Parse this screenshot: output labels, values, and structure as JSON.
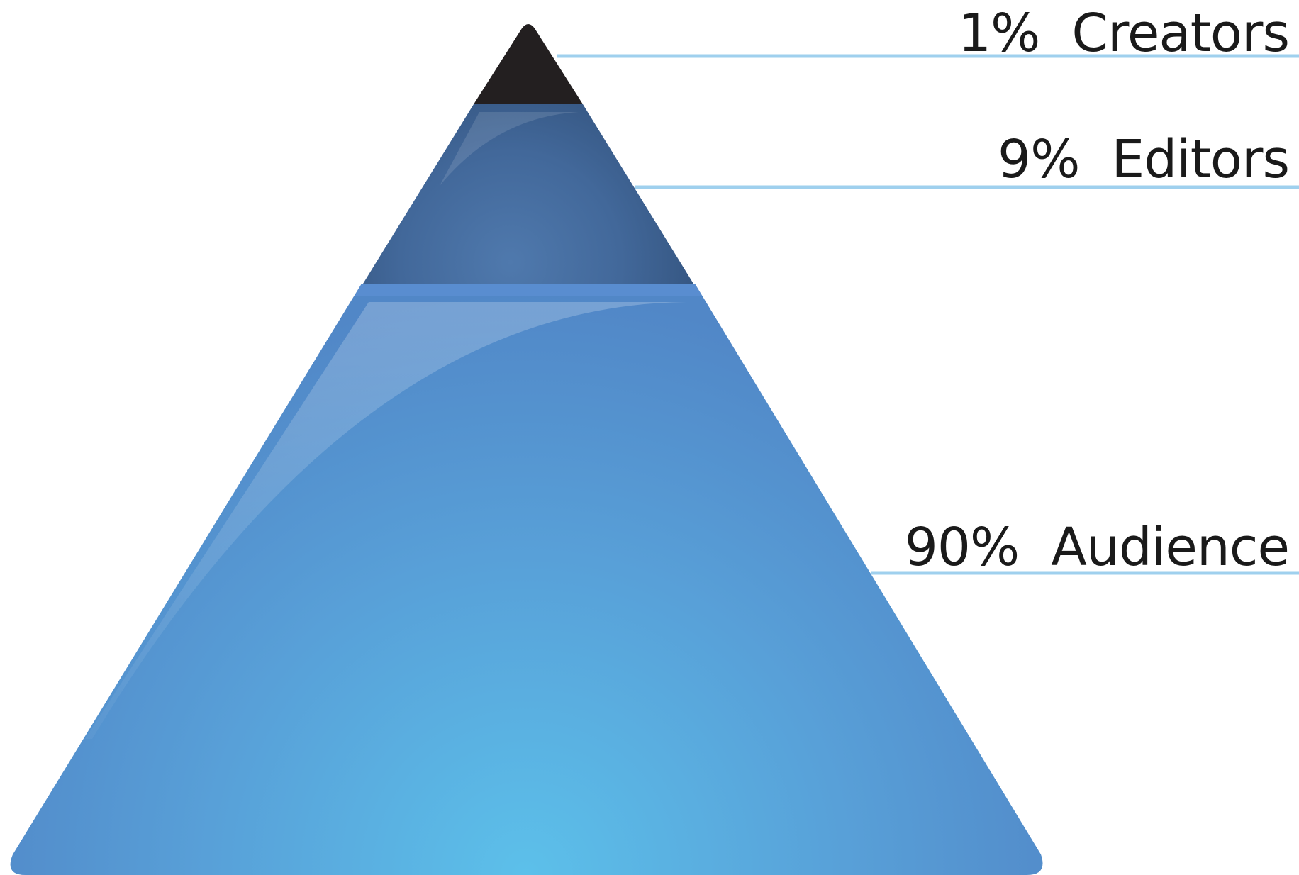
{
  "diagram": {
    "type": "pyramid",
    "tiers": [
      {
        "percent": "1%",
        "name": "Creators",
        "share": 0.01,
        "color": "#231f20"
      },
      {
        "percent": "9%",
        "name": "Editors",
        "share": 0.09,
        "color": "#3f6596"
      },
      {
        "percent": "90%",
        "name": "Audience",
        "share": 0.9,
        "color": "#5489c9"
      }
    ],
    "leader_line_color": "#9fd0ee",
    "highlight_color": "#5cc0ea"
  }
}
